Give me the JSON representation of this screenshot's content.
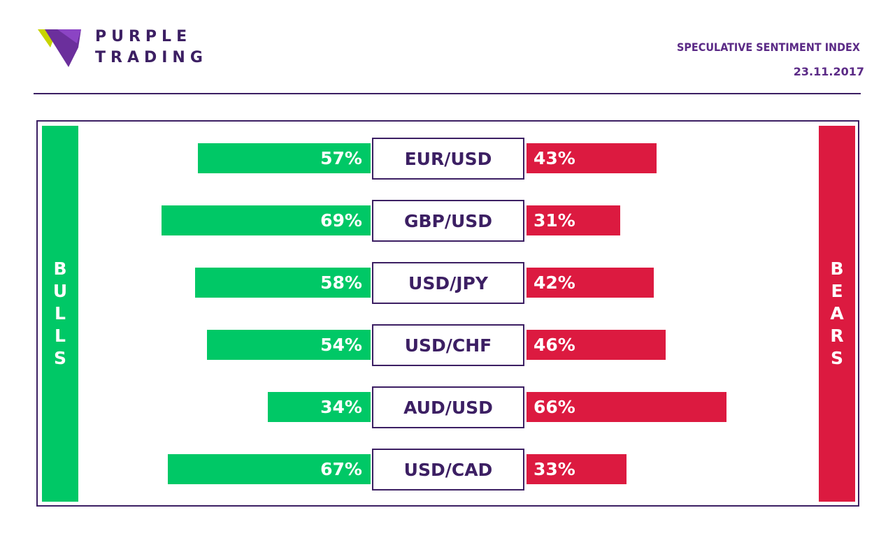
{
  "brand": {
    "line1": "PURPLE",
    "line2": "TRADING"
  },
  "header": {
    "title": "SPECULATIVE SENTIMENT INDEX",
    "date": "23.11.2017"
  },
  "colors": {
    "bulls": "#00c866",
    "bears": "#dc1a40",
    "brand": "#3c1f63"
  },
  "icons": {
    "logo": "purple-trading-logo-icon"
  },
  "chart_data": {
    "type": "bar",
    "title": "SPECULATIVE SENTIMENT INDEX",
    "left_label": "BULLS",
    "right_label": "BEARS",
    "categories": [
      "EUR/USD",
      "GBP/USD",
      "USD/JPY",
      "USD/CHF",
      "AUD/USD",
      "USD/CAD"
    ],
    "series": [
      {
        "name": "BULLS",
        "values": [
          57,
          69,
          58,
          54,
          34,
          67
        ],
        "labels": [
          "57%",
          "69%",
          "58%",
          "54%",
          "34%",
          "67%"
        ]
      },
      {
        "name": "BEARS",
        "values": [
          43,
          31,
          42,
          46,
          66,
          33
        ],
        "labels": [
          "43%",
          "31%",
          "42%",
          "46%",
          "66%",
          "33%"
        ]
      }
    ]
  }
}
